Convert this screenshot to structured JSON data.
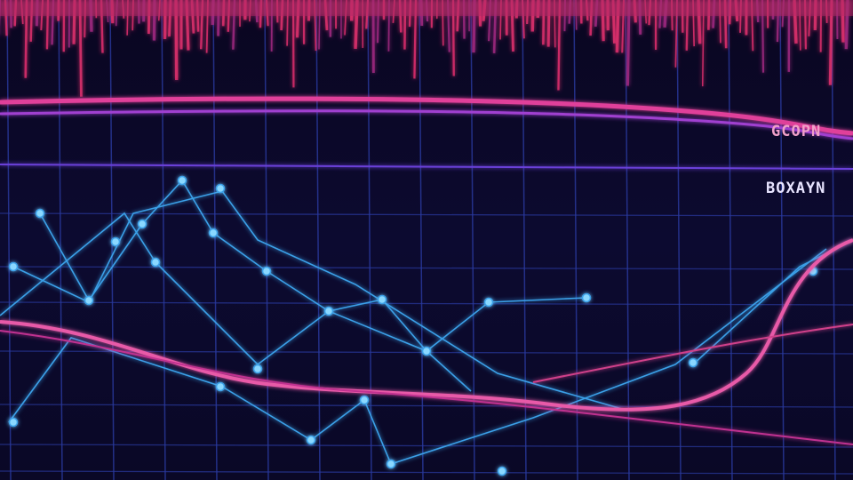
{
  "labels": {
    "upper": "GCOPN",
    "lower": "BOXAYN"
  }
}
